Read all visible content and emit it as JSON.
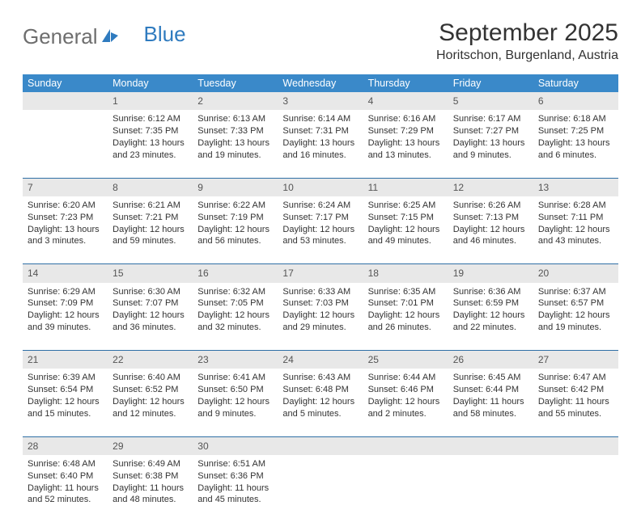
{
  "brand": {
    "part1": "General",
    "part2": "Blue"
  },
  "title": "September 2025",
  "location": "Horitschon, Burgenland, Austria",
  "header_bg": "#3a89c9",
  "header_text_color": "#ffffff",
  "daynum_bg": "#e8e8e8",
  "border_color": "#2f6fa6",
  "text_color": "#333333",
  "font_family": "Arial",
  "days": [
    "Sunday",
    "Monday",
    "Tuesday",
    "Wednesday",
    "Thursday",
    "Friday",
    "Saturday"
  ],
  "weeks": [
    [
      null,
      {
        "n": "1",
        "sr": "6:12 AM",
        "ss": "7:35 PM",
        "dl": "13 hours and 23 minutes."
      },
      {
        "n": "2",
        "sr": "6:13 AM",
        "ss": "7:33 PM",
        "dl": "13 hours and 19 minutes."
      },
      {
        "n": "3",
        "sr": "6:14 AM",
        "ss": "7:31 PM",
        "dl": "13 hours and 16 minutes."
      },
      {
        "n": "4",
        "sr": "6:16 AM",
        "ss": "7:29 PM",
        "dl": "13 hours and 13 minutes."
      },
      {
        "n": "5",
        "sr": "6:17 AM",
        "ss": "7:27 PM",
        "dl": "13 hours and 9 minutes."
      },
      {
        "n": "6",
        "sr": "6:18 AM",
        "ss": "7:25 PM",
        "dl": "13 hours and 6 minutes."
      }
    ],
    [
      {
        "n": "7",
        "sr": "6:20 AM",
        "ss": "7:23 PM",
        "dl": "13 hours and 3 minutes."
      },
      {
        "n": "8",
        "sr": "6:21 AM",
        "ss": "7:21 PM",
        "dl": "12 hours and 59 minutes."
      },
      {
        "n": "9",
        "sr": "6:22 AM",
        "ss": "7:19 PM",
        "dl": "12 hours and 56 minutes."
      },
      {
        "n": "10",
        "sr": "6:24 AM",
        "ss": "7:17 PM",
        "dl": "12 hours and 53 minutes."
      },
      {
        "n": "11",
        "sr": "6:25 AM",
        "ss": "7:15 PM",
        "dl": "12 hours and 49 minutes."
      },
      {
        "n": "12",
        "sr": "6:26 AM",
        "ss": "7:13 PM",
        "dl": "12 hours and 46 minutes."
      },
      {
        "n": "13",
        "sr": "6:28 AM",
        "ss": "7:11 PM",
        "dl": "12 hours and 43 minutes."
      }
    ],
    [
      {
        "n": "14",
        "sr": "6:29 AM",
        "ss": "7:09 PM",
        "dl": "12 hours and 39 minutes."
      },
      {
        "n": "15",
        "sr": "6:30 AM",
        "ss": "7:07 PM",
        "dl": "12 hours and 36 minutes."
      },
      {
        "n": "16",
        "sr": "6:32 AM",
        "ss": "7:05 PM",
        "dl": "12 hours and 32 minutes."
      },
      {
        "n": "17",
        "sr": "6:33 AM",
        "ss": "7:03 PM",
        "dl": "12 hours and 29 minutes."
      },
      {
        "n": "18",
        "sr": "6:35 AM",
        "ss": "7:01 PM",
        "dl": "12 hours and 26 minutes."
      },
      {
        "n": "19",
        "sr": "6:36 AM",
        "ss": "6:59 PM",
        "dl": "12 hours and 22 minutes."
      },
      {
        "n": "20",
        "sr": "6:37 AM",
        "ss": "6:57 PM",
        "dl": "12 hours and 19 minutes."
      }
    ],
    [
      {
        "n": "21",
        "sr": "6:39 AM",
        "ss": "6:54 PM",
        "dl": "12 hours and 15 minutes."
      },
      {
        "n": "22",
        "sr": "6:40 AM",
        "ss": "6:52 PM",
        "dl": "12 hours and 12 minutes."
      },
      {
        "n": "23",
        "sr": "6:41 AM",
        "ss": "6:50 PM",
        "dl": "12 hours and 9 minutes."
      },
      {
        "n": "24",
        "sr": "6:43 AM",
        "ss": "6:48 PM",
        "dl": "12 hours and 5 minutes."
      },
      {
        "n": "25",
        "sr": "6:44 AM",
        "ss": "6:46 PM",
        "dl": "12 hours and 2 minutes."
      },
      {
        "n": "26",
        "sr": "6:45 AM",
        "ss": "6:44 PM",
        "dl": "11 hours and 58 minutes."
      },
      {
        "n": "27",
        "sr": "6:47 AM",
        "ss": "6:42 PM",
        "dl": "11 hours and 55 minutes."
      }
    ],
    [
      {
        "n": "28",
        "sr": "6:48 AM",
        "ss": "6:40 PM",
        "dl": "11 hours and 52 minutes."
      },
      {
        "n": "29",
        "sr": "6:49 AM",
        "ss": "6:38 PM",
        "dl": "11 hours and 48 minutes."
      },
      {
        "n": "30",
        "sr": "6:51 AM",
        "ss": "6:36 PM",
        "dl": "11 hours and 45 minutes."
      },
      null,
      null,
      null,
      null
    ]
  ],
  "labels": {
    "sunrise": "Sunrise: ",
    "sunset": "Sunset: ",
    "daylight": "Daylight: "
  }
}
